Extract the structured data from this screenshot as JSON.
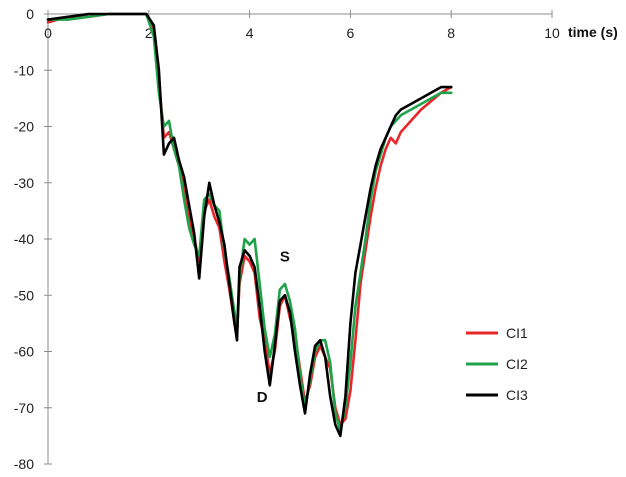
{
  "chart_data": {
    "type": "line",
    "xlabel": "time (s)",
    "ylabel": "",
    "xlim": [
      0,
      10
    ],
    "ylim": [
      -80,
      0
    ],
    "xticks": [
      0,
      2,
      4,
      6,
      8,
      10
    ],
    "yticks": [
      0,
      -10,
      -20,
      -30,
      -40,
      -50,
      -60,
      -70,
      -80
    ],
    "grid": false,
    "legend": "right",
    "annotations": [
      {
        "text": "S",
        "x": 4.7,
        "y": -44
      },
      {
        "text": "D",
        "x": 4.25,
        "y": -69
      }
    ],
    "series": [
      {
        "name": "CI1",
        "color": "#e8262a",
        "points": [
          [
            0,
            -1.5
          ],
          [
            0.4,
            -0.5
          ],
          [
            0.8,
            -0.5
          ],
          [
            1.2,
            0
          ],
          [
            1.6,
            0
          ],
          [
            1.95,
            0
          ],
          [
            2.1,
            -3
          ],
          [
            2.2,
            -12
          ],
          [
            2.3,
            -22
          ],
          [
            2.4,
            -21
          ],
          [
            2.5,
            -24
          ],
          [
            2.6,
            -27
          ],
          [
            2.7,
            -31
          ],
          [
            2.8,
            -36
          ],
          [
            2.9,
            -40
          ],
          [
            3.0,
            -44
          ],
          [
            3.1,
            -35
          ],
          [
            3.2,
            -33
          ],
          [
            3.3,
            -36
          ],
          [
            3.4,
            -38
          ],
          [
            3.5,
            -44
          ],
          [
            3.6,
            -49
          ],
          [
            3.7,
            -55
          ],
          [
            3.75,
            -57
          ],
          [
            3.8,
            -48
          ],
          [
            3.9,
            -43
          ],
          [
            4.0,
            -44
          ],
          [
            4.1,
            -46
          ],
          [
            4.2,
            -54
          ],
          [
            4.3,
            -58
          ],
          [
            4.4,
            -64
          ],
          [
            4.5,
            -60
          ],
          [
            4.6,
            -52
          ],
          [
            4.7,
            -50
          ],
          [
            4.8,
            -54
          ],
          [
            4.9,
            -57
          ],
          [
            5.0,
            -63
          ],
          [
            5.1,
            -69
          ],
          [
            5.2,
            -66
          ],
          [
            5.3,
            -61
          ],
          [
            5.4,
            -59
          ],
          [
            5.5,
            -61
          ],
          [
            5.6,
            -63
          ],
          [
            5.7,
            -70
          ],
          [
            5.8,
            -73
          ],
          [
            5.9,
            -72
          ],
          [
            6.0,
            -67
          ],
          [
            6.1,
            -58
          ],
          [
            6.2,
            -48
          ],
          [
            6.3,
            -42
          ],
          [
            6.4,
            -36
          ],
          [
            6.5,
            -31
          ],
          [
            6.6,
            -27
          ],
          [
            6.7,
            -24
          ],
          [
            6.8,
            -22
          ],
          [
            6.9,
            -23
          ],
          [
            7.0,
            -21
          ],
          [
            7.2,
            -19
          ],
          [
            7.4,
            -17
          ],
          [
            7.6,
            -15.5
          ],
          [
            7.8,
            -14
          ],
          [
            8.0,
            -13
          ]
        ]
      },
      {
        "name": "CI2",
        "color": "#1ea34a",
        "points": [
          [
            0,
            -1
          ],
          [
            0.4,
            -1
          ],
          [
            0.8,
            -0.5
          ],
          [
            1.2,
            0
          ],
          [
            1.6,
            0
          ],
          [
            1.95,
            0
          ],
          [
            2.1,
            -4
          ],
          [
            2.2,
            -14
          ],
          [
            2.3,
            -20
          ],
          [
            2.4,
            -19
          ],
          [
            2.5,
            -24
          ],
          [
            2.6,
            -27
          ],
          [
            2.7,
            -33
          ],
          [
            2.8,
            -38
          ],
          [
            2.9,
            -41
          ],
          [
            3.0,
            -43
          ],
          [
            3.1,
            -33
          ],
          [
            3.2,
            -32
          ],
          [
            3.3,
            -34
          ],
          [
            3.4,
            -35
          ],
          [
            3.5,
            -42
          ],
          [
            3.6,
            -47
          ],
          [
            3.7,
            -53
          ],
          [
            3.75,
            -56
          ],
          [
            3.8,
            -47
          ],
          [
            3.9,
            -40
          ],
          [
            4.0,
            -41
          ],
          [
            4.1,
            -40
          ],
          [
            4.2,
            -48
          ],
          [
            4.3,
            -56
          ],
          [
            4.4,
            -61
          ],
          [
            4.5,
            -57
          ],
          [
            4.6,
            -49
          ],
          [
            4.7,
            -48
          ],
          [
            4.8,
            -51
          ],
          [
            4.9,
            -56
          ],
          [
            5.0,
            -64
          ],
          [
            5.1,
            -70
          ],
          [
            5.2,
            -65
          ],
          [
            5.3,
            -60
          ],
          [
            5.4,
            -58
          ],
          [
            5.5,
            -58
          ],
          [
            5.6,
            -62
          ],
          [
            5.7,
            -71
          ],
          [
            5.8,
            -74
          ],
          [
            5.9,
            -70
          ],
          [
            6.0,
            -62
          ],
          [
            6.1,
            -52
          ],
          [
            6.2,
            -46
          ],
          [
            6.3,
            -40
          ],
          [
            6.4,
            -33
          ],
          [
            6.5,
            -28
          ],
          [
            6.6,
            -25
          ],
          [
            6.7,
            -22
          ],
          [
            6.8,
            -20
          ],
          [
            6.9,
            -19
          ],
          [
            7.0,
            -18
          ],
          [
            7.2,
            -17
          ],
          [
            7.4,
            -16
          ],
          [
            7.6,
            -15
          ],
          [
            7.8,
            -14
          ],
          [
            8.0,
            -14
          ]
        ]
      },
      {
        "name": "CI3",
        "color": "#000000",
        "points": [
          [
            0,
            -1
          ],
          [
            0.4,
            -0.5
          ],
          [
            0.8,
            0
          ],
          [
            1.2,
            0
          ],
          [
            1.6,
            0
          ],
          [
            1.95,
            0
          ],
          [
            2.1,
            -2
          ],
          [
            2.2,
            -10
          ],
          [
            2.3,
            -25
          ],
          [
            2.4,
            -23
          ],
          [
            2.5,
            -22
          ],
          [
            2.6,
            -26
          ],
          [
            2.7,
            -29
          ],
          [
            2.8,
            -34
          ],
          [
            2.9,
            -39
          ],
          [
            3.0,
            -47
          ],
          [
            3.1,
            -36
          ],
          [
            3.2,
            -30
          ],
          [
            3.3,
            -34
          ],
          [
            3.4,
            -37
          ],
          [
            3.5,
            -41
          ],
          [
            3.6,
            -48
          ],
          [
            3.7,
            -55
          ],
          [
            3.75,
            -58
          ],
          [
            3.8,
            -45
          ],
          [
            3.9,
            -42
          ],
          [
            4.0,
            -43
          ],
          [
            4.1,
            -45
          ],
          [
            4.2,
            -52
          ],
          [
            4.3,
            -60
          ],
          [
            4.4,
            -66
          ],
          [
            4.5,
            -59
          ],
          [
            4.6,
            -51
          ],
          [
            4.7,
            -50
          ],
          [
            4.8,
            -53
          ],
          [
            4.9,
            -60
          ],
          [
            5.0,
            -66
          ],
          [
            5.1,
            -71
          ],
          [
            5.2,
            -64
          ],
          [
            5.3,
            -59
          ],
          [
            5.4,
            -58
          ],
          [
            5.5,
            -61
          ],
          [
            5.6,
            -68
          ],
          [
            5.7,
            -73
          ],
          [
            5.8,
            -75
          ],
          [
            5.9,
            -68
          ],
          [
            6.0,
            -55
          ],
          [
            6.1,
            -46
          ],
          [
            6.2,
            -41
          ],
          [
            6.3,
            -36
          ],
          [
            6.4,
            -31
          ],
          [
            6.5,
            -27
          ],
          [
            6.6,
            -24
          ],
          [
            6.7,
            -22
          ],
          [
            6.8,
            -20
          ],
          [
            6.9,
            -18
          ],
          [
            7.0,
            -17
          ],
          [
            7.2,
            -16
          ],
          [
            7.4,
            -15
          ],
          [
            7.6,
            -14
          ],
          [
            7.8,
            -13
          ],
          [
            8.0,
            -13
          ]
        ]
      }
    ]
  }
}
